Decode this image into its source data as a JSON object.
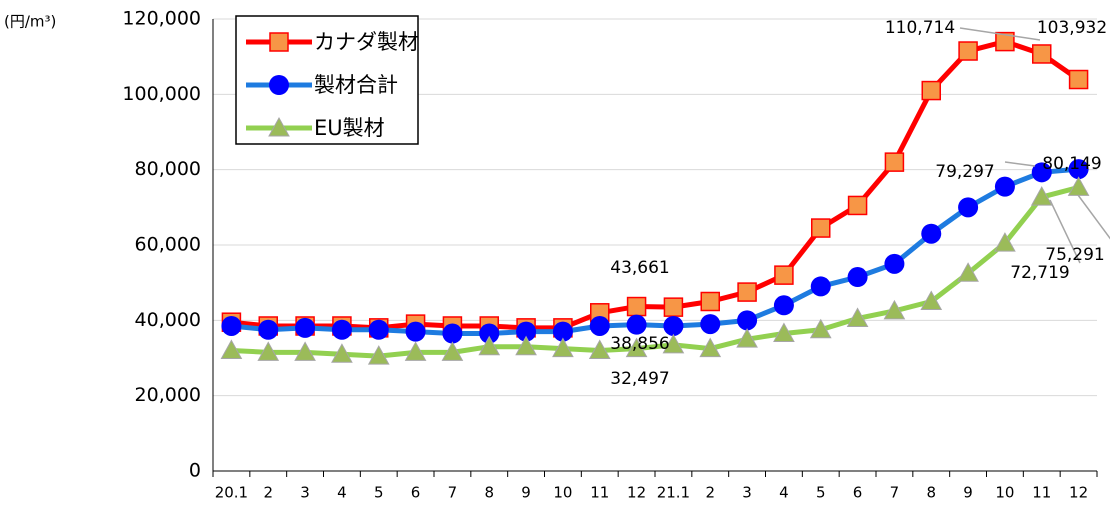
{
  "chart_data": {
    "type": "line",
    "y_axis_label": "(円/m³)",
    "categories": [
      "20.1",
      "2",
      "3",
      "4",
      "5",
      "6",
      "7",
      "8",
      "9",
      "10",
      "11",
      "12",
      "21.1",
      "2",
      "3",
      "4",
      "5",
      "6",
      "7",
      "8",
      "9",
      "10",
      "11",
      "12"
    ],
    "series": [
      {
        "name": "カナダ製材",
        "color": "#ff0000",
        "marker": "square",
        "marker_color": "#f79646",
        "values": [
          39500,
          38500,
          38500,
          38500,
          38000,
          39000,
          38500,
          38500,
          38000,
          38000,
          42000,
          43661,
          43500,
          45000,
          47500,
          52000,
          64500,
          70500,
          82000,
          101000,
          111500,
          114000,
          110714,
          103932
        ],
        "value_labels": [
          null,
          null,
          null,
          null,
          null,
          null,
          null,
          null,
          null,
          null,
          null,
          "43,661",
          null,
          null,
          null,
          null,
          null,
          null,
          null,
          null,
          null,
          null,
          "110,714",
          "103,932"
        ]
      },
      {
        "name": "製材合計",
        "color": "#1e7be0",
        "marker": "circle",
        "marker_color": "#0000ff",
        "values": [
          38500,
          37500,
          38000,
          37500,
          37500,
          37000,
          36500,
          36500,
          37000,
          37000,
          38500,
          38856,
          38500,
          39000,
          40000,
          44000,
          49000,
          51500,
          55000,
          63000,
          70000,
          75500,
          79297,
          80149
        ],
        "value_labels": [
          null,
          null,
          null,
          null,
          null,
          null,
          null,
          null,
          null,
          null,
          null,
          "38,856",
          null,
          null,
          null,
          null,
          null,
          null,
          null,
          null,
          null,
          null,
          "79,297",
          "80,149"
        ]
      },
      {
        "name": "EU製材",
        "color": "#92d050",
        "marker": "triangle",
        "marker_color": "#9bbb59",
        "values": [
          32000,
          31500,
          31500,
          31000,
          30500,
          31500,
          31500,
          33000,
          33000,
          32500,
          32000,
          32497,
          33500,
          32500,
          35000,
          36500,
          37500,
          40500,
          42500,
          45000,
          52500,
          60500,
          72719,
          75291
        ],
        "value_labels": [
          null,
          null,
          null,
          null,
          null,
          null,
          null,
          null,
          null,
          null,
          null,
          "32,497",
          null,
          null,
          null,
          null,
          null,
          null,
          null,
          null,
          null,
          null,
          "72,719",
          "75,291"
        ]
      }
    ],
    "ylim": [
      0,
      120000
    ],
    "yticks": [
      0,
      {
        "value": 20000,
        "label": "20,000"
      },
      {
        "value": 40000,
        "label": "40,000"
      },
      {
        "value": 60000,
        "label": "60,000"
      },
      {
        "value": 80000,
        "label": "80,000"
      },
      {
        "value": 100000,
        "label": "100,000"
      },
      {
        "value": 120000,
        "label": "120,000"
      }
    ],
    "grid": true,
    "legend": "upper left"
  }
}
